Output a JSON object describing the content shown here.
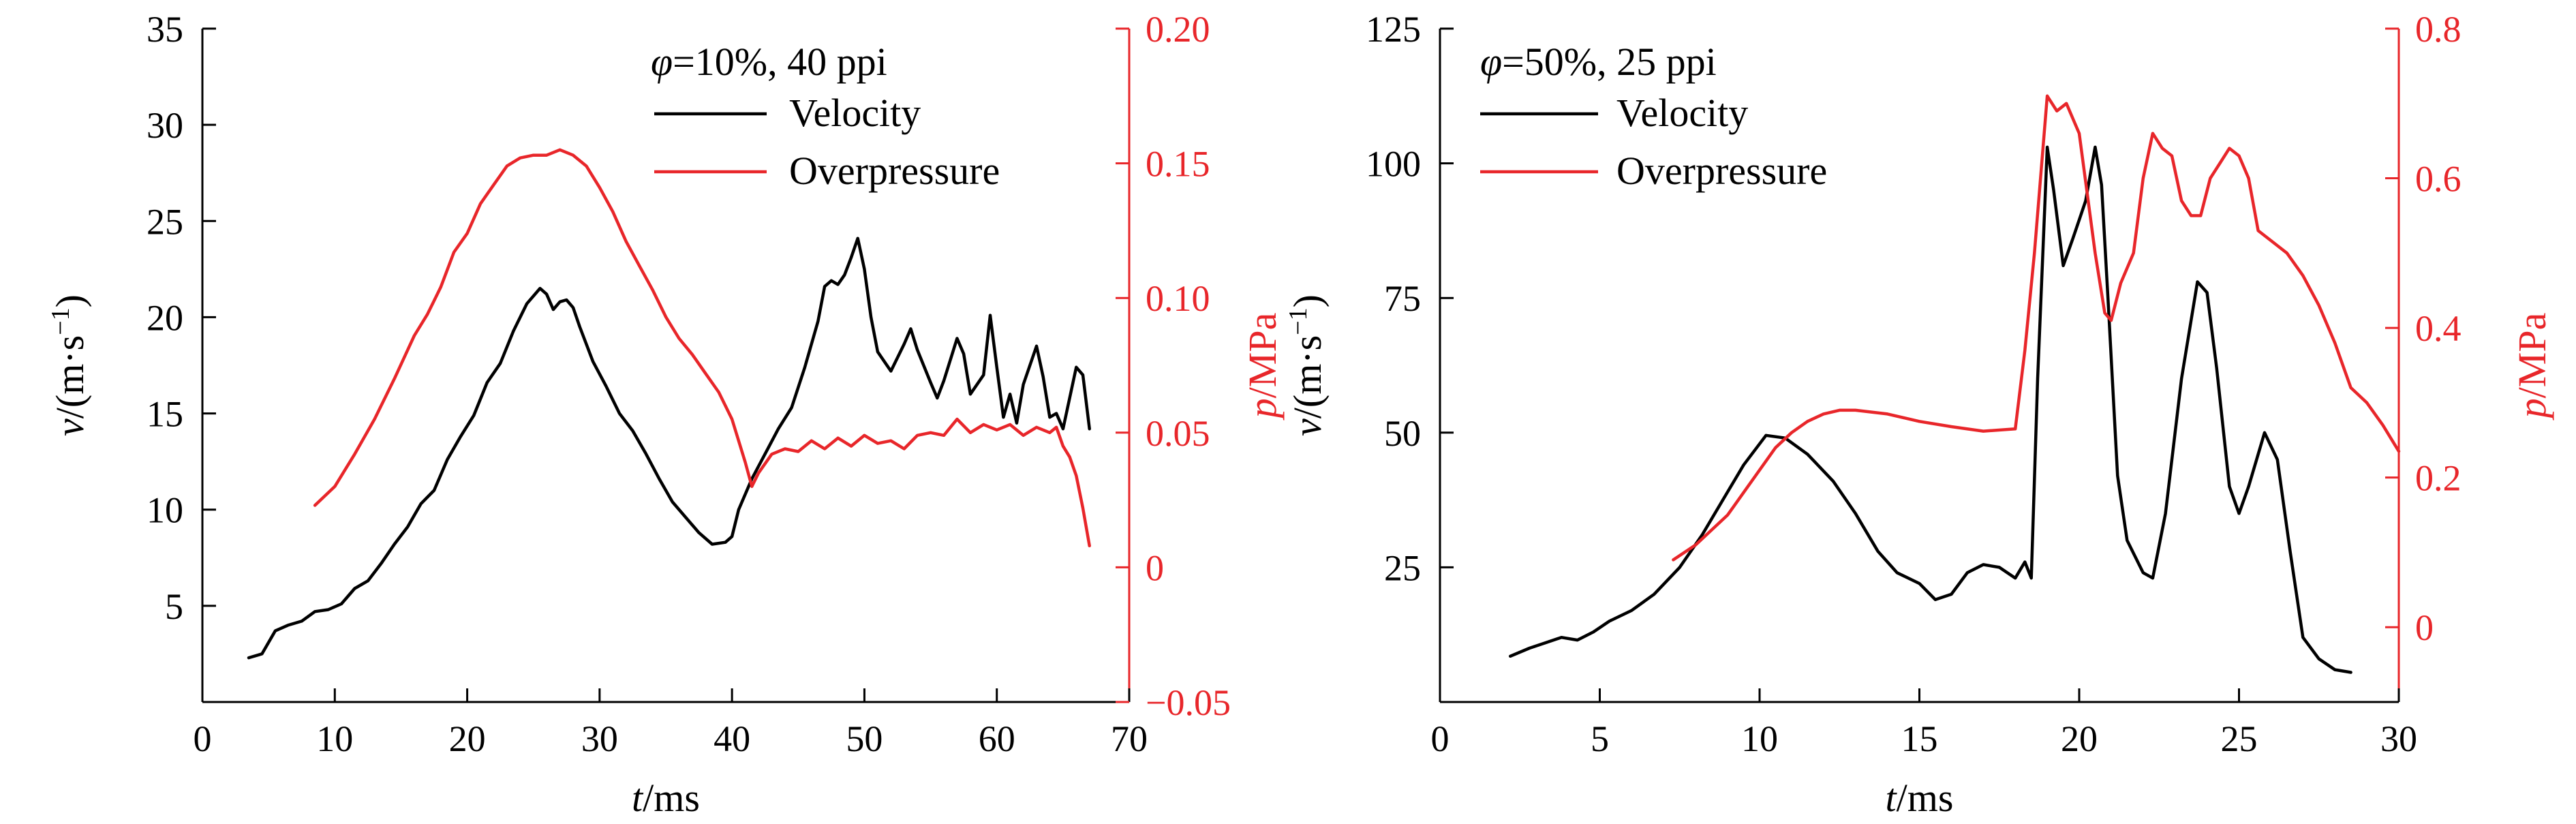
{
  "colors": {
    "velocity": "#000000",
    "overpressure": "#e8262a",
    "axis": "#000000"
  },
  "chart_data": [
    {
      "type": "line",
      "title": "",
      "annotation": {
        "phi": "φ",
        "rest": "=10%, 40 ppi"
      },
      "xlabel": {
        "var": "t",
        "unit": "/ms"
      },
      "ylabel": {
        "var": "v",
        "unit": "/(m·s",
        "sup": "−1",
        "close": ")"
      },
      "y2label": {
        "var": "p",
        "unit": "/MPa"
      },
      "xlim": [
        0,
        70
      ],
      "ylim": [
        0,
        35
      ],
      "y2lim": [
        -0.05,
        0.2
      ],
      "xticks": [
        0,
        10,
        20,
        30,
        40,
        50,
        60,
        70
      ],
      "xtick_labels": [
        "0",
        "10",
        "20",
        "30",
        "40",
        "50",
        "60",
        "70"
      ],
      "yticks": [
        5,
        10,
        15,
        20,
        25,
        30,
        35
      ],
      "ytick_labels": [
        "5",
        "10",
        "15",
        "20",
        "25",
        "30",
        "35"
      ],
      "y2ticks": [
        -0.05,
        0,
        0.05,
        0.1,
        0.15,
        0.2
      ],
      "y2tick_labels": [
        "−0.05",
        "0",
        "0.05",
        "0.10",
        "0.15",
        "0.20"
      ],
      "grid": false,
      "legend_position": "top-right",
      "series": [
        {
          "name": "Velocity",
          "axis": "left",
          "color": "#000000",
          "x": [
            3.5,
            4.5,
            5.5,
            6.5,
            7.5,
            8.5,
            9.5,
            10.5,
            11.5,
            12.5,
            13.5,
            14.5,
            15.5,
            16.5,
            17.5,
            18.5,
            19.5,
            20.5,
            21.5,
            22.5,
            23.5,
            24.5,
            25.5,
            26,
            26.5,
            27,
            27.5,
            28,
            28.5,
            29.5,
            30.5,
            31.5,
            32.5,
            33.5,
            34.5,
            35.5,
            36.5,
            37.5,
            38.5,
            39.5,
            40,
            40.5,
            41.5,
            42.5,
            43.5,
            44.5,
            45.5,
            46.5,
            47,
            47.5,
            48,
            48.5,
            49,
            49.5,
            50,
            50.5,
            51,
            52,
            53,
            53.5,
            54,
            55,
            55.5,
            56,
            57,
            57.5,
            58,
            59,
            59.5,
            60,
            60.5,
            61,
            61.5,
            62,
            63,
            63.5,
            64,
            64.5,
            65,
            66,
            66.5,
            67
          ],
          "y": [
            2.3,
            2.5,
            3.7,
            4,
            4.2,
            4.7,
            4.8,
            5.1,
            5.9,
            6.3,
            7.2,
            8.2,
            9.1,
            10.3,
            11,
            12.6,
            13.8,
            14.9,
            16.6,
            17.6,
            19.3,
            20.7,
            21.5,
            21.2,
            20.4,
            20.8,
            20.9,
            20.5,
            19.5,
            17.7,
            16.4,
            15,
            14.1,
            12.9,
            11.6,
            10.4,
            9.6,
            8.8,
            8.2,
            8.3,
            8.6,
            10,
            11.6,
            12.9,
            14.2,
            15.3,
            17.4,
            19.8,
            21.6,
            21.9,
            21.7,
            22.2,
            23.1,
            24.1,
            22.5,
            20,
            18.2,
            17.2,
            18.6,
            19.4,
            18.3,
            16.6,
            15.8,
            16.7,
            18.9,
            18.1,
            16,
            17,
            20.1,
            17.4,
            14.8,
            16,
            14.5,
            16.5,
            18.5,
            16.9,
            14.8,
            15,
            14.2,
            17.4,
            17,
            14.2
          ]
        },
        {
          "name": "Overpressure",
          "axis": "right",
          "color": "#e8262a",
          "x": [
            8.5,
            10,
            11.5,
            13,
            14.5,
            16,
            17,
            18,
            19,
            20,
            21,
            22,
            23,
            24,
            25,
            26,
            27,
            28,
            29,
            30,
            31,
            32,
            33,
            34,
            35,
            36,
            37,
            38,
            39,
            40,
            41,
            41.5,
            42,
            43,
            44,
            45,
            46,
            47,
            48,
            49,
            50,
            51,
            52,
            53,
            54,
            55,
            56,
            57,
            58,
            59,
            60,
            61,
            62,
            63,
            64,
            64.5,
            65,
            65.5,
            66,
            66.5,
            67
          ],
          "y": [
            0.023,
            0.03,
            0.042,
            0.055,
            0.07,
            0.086,
            0.094,
            0.104,
            0.117,
            0.124,
            0.135,
            0.142,
            0.149,
            0.152,
            0.153,
            0.153,
            0.155,
            0.153,
            0.149,
            0.141,
            0.132,
            0.121,
            0.112,
            0.103,
            0.093,
            0.085,
            0.079,
            0.072,
            0.065,
            0.055,
            0.039,
            0.03,
            0.035,
            0.042,
            0.044,
            0.043,
            0.047,
            0.044,
            0.048,
            0.045,
            0.049,
            0.046,
            0.047,
            0.044,
            0.049,
            0.05,
            0.049,
            0.055,
            0.05,
            0.053,
            0.051,
            0.053,
            0.049,
            0.052,
            0.05,
            0.052,
            0.045,
            0.041,
            0.034,
            0.022,
            0.008
          ]
        }
      ]
    },
    {
      "type": "line",
      "title": "",
      "annotation": {
        "phi": "φ",
        "rest": "=50%, 25 ppi"
      },
      "xlabel": {
        "var": "t",
        "unit": "/ms"
      },
      "ylabel": {
        "var": "v",
        "unit": "/(m·s",
        "sup": "−1",
        "close": ")"
      },
      "y2label": {
        "var": "p",
        "unit": "/MPa"
      },
      "xlim": [
        0,
        30
      ],
      "ylim": [
        0,
        125
      ],
      "y2lim": [
        -0.1,
        0.8
      ],
      "xticks": [
        0,
        5,
        10,
        15,
        20,
        25,
        30
      ],
      "xtick_labels": [
        "0",
        "5",
        "10",
        "15",
        "20",
        "25",
        "30"
      ],
      "yticks": [
        25,
        50,
        75,
        100,
        125
      ],
      "ytick_labels": [
        "25",
        "50",
        "75",
        "100",
        "125"
      ],
      "y2ticks": [
        0,
        0.2,
        0.4,
        0.6,
        0.8
      ],
      "y2tick_labels": [
        "0",
        "0.2",
        "0.4",
        "0.6",
        "0.8"
      ],
      "grid": false,
      "legend_position": "top-left",
      "series": [
        {
          "name": "Velocity",
          "axis": "left",
          "color": "#000000",
          "x": [
            2.2,
            2.8,
            3.3,
            3.8,
            4.3,
            4.8,
            5.3,
            6,
            6.7,
            7.5,
            8.2,
            8.9,
            9.5,
            10.2,
            10.8,
            11.5,
            12.3,
            13,
            13.7,
            14.3,
            15,
            15.5,
            16,
            16.5,
            17,
            17.5,
            18,
            18.3,
            18.5,
            18.7,
            19,
            19.2,
            19.5,
            19.8,
            20.2,
            20.5,
            20.7,
            20.9,
            21.2,
            21.5,
            22,
            22.3,
            22.7,
            23.2,
            23.7,
            24,
            24.3,
            24.7,
            25,
            25.3,
            25.8,
            26.2,
            26.6,
            27,
            27.5,
            28,
            28.5
          ],
          "y": [
            8.5,
            10,
            11,
            12,
            11.5,
            13,
            15,
            17,
            20,
            25,
            31,
            38,
            44,
            49.5,
            49,
            46,
            41,
            35,
            28,
            24,
            22,
            19,
            20,
            24,
            25.5,
            25,
            23,
            26,
            23,
            60,
            103,
            95,
            81,
            86,
            93,
            103,
            96,
            75,
            42,
            30,
            24,
            23,
            35,
            60,
            78,
            76,
            62,
            40,
            35,
            40,
            50,
            45,
            28,
            12,
            8,
            6,
            5.5
          ]
        },
        {
          "name": "Overpressure",
          "axis": "right",
          "color": "#e8262a",
          "x": [
            7.3,
            8,
            8.5,
            9,
            9.5,
            10,
            10.5,
            11,
            11.5,
            12,
            12.5,
            13,
            14,
            15,
            16,
            17,
            18,
            18.3,
            18.6,
            19,
            19.3,
            19.6,
            20,
            20.5,
            20.8,
            21,
            21.3,
            21.7,
            22,
            22.3,
            22.6,
            22.9,
            23.2,
            23.5,
            23.8,
            24.1,
            24.4,
            24.7,
            25,
            25.3,
            25.6,
            25.9,
            26.2,
            26.5,
            27,
            27.5,
            28,
            28.5,
            29,
            29.5,
            30
          ],
          "y": [
            0.09,
            0.11,
            0.13,
            0.15,
            0.18,
            0.21,
            0.24,
            0.26,
            0.275,
            0.285,
            0.29,
            0.29,
            0.285,
            0.275,
            0.268,
            0.262,
            0.265,
            0.37,
            0.5,
            0.71,
            0.69,
            0.7,
            0.66,
            0.5,
            0.42,
            0.41,
            0.46,
            0.5,
            0.6,
            0.66,
            0.64,
            0.63,
            0.57,
            0.55,
            0.55,
            0.6,
            0.62,
            0.64,
            0.63,
            0.6,
            0.53,
            0.52,
            0.51,
            0.5,
            0.47,
            0.43,
            0.38,
            0.32,
            0.3,
            0.27,
            0.235
          ]
        }
      ]
    }
  ]
}
